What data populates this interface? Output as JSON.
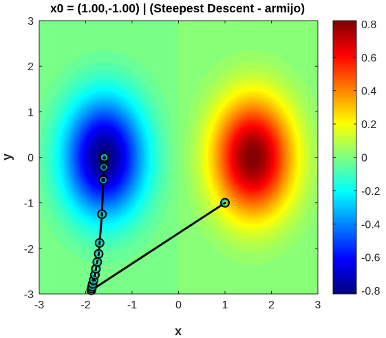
{
  "chart_data": {
    "type": "heatmap",
    "title": "x0 = (1.00,-1.00) | (Steepest Descent - armijo)",
    "xlabel": "x",
    "ylabel": "y",
    "xlim": [
      -3,
      3
    ],
    "ylim": [
      -3,
      3
    ],
    "xticks": [
      "-3",
      "-2",
      "-1",
      "0",
      "1",
      "2",
      "3"
    ],
    "yticks": [
      "-3",
      "-2",
      "-1",
      "0",
      "1",
      "2",
      "3"
    ],
    "colormap": "jet",
    "colorbar": {
      "clim": [
        -0.82,
        0.82
      ],
      "ticks": [
        "-0.8",
        "-0.6",
        "-0.4",
        "-0.2",
        "0",
        "0.2",
        "0.4",
        "0.6",
        "0.8"
      ]
    },
    "field": {
      "amplitude": 0.82,
      "positive_center": [
        1.6,
        0.0
      ],
      "negative_center": [
        -1.6,
        0.0
      ],
      "sigma_x": 0.6,
      "sigma_y": 0.9
    },
    "path": {
      "color": "#000000",
      "marker_color": "#00bfbf",
      "points": [
        [
          1.0,
          -1.0
        ],
        [
          -1.88,
          -2.92
        ],
        [
          -1.87,
          -2.88
        ],
        [
          -1.86,
          -2.84
        ],
        [
          -1.85,
          -2.78
        ],
        [
          -1.83,
          -2.7
        ],
        [
          -1.8,
          -2.58
        ],
        [
          -1.78,
          -2.45
        ],
        [
          -1.75,
          -2.3
        ],
        [
          -1.72,
          -2.12
        ],
        [
          -1.7,
          -1.88
        ],
        [
          -1.65,
          -1.25
        ],
        [
          -1.62,
          -0.5
        ],
        [
          -1.61,
          -0.22
        ],
        [
          -1.6,
          -0.03
        ],
        [
          -1.6,
          0.0
        ]
      ]
    }
  }
}
